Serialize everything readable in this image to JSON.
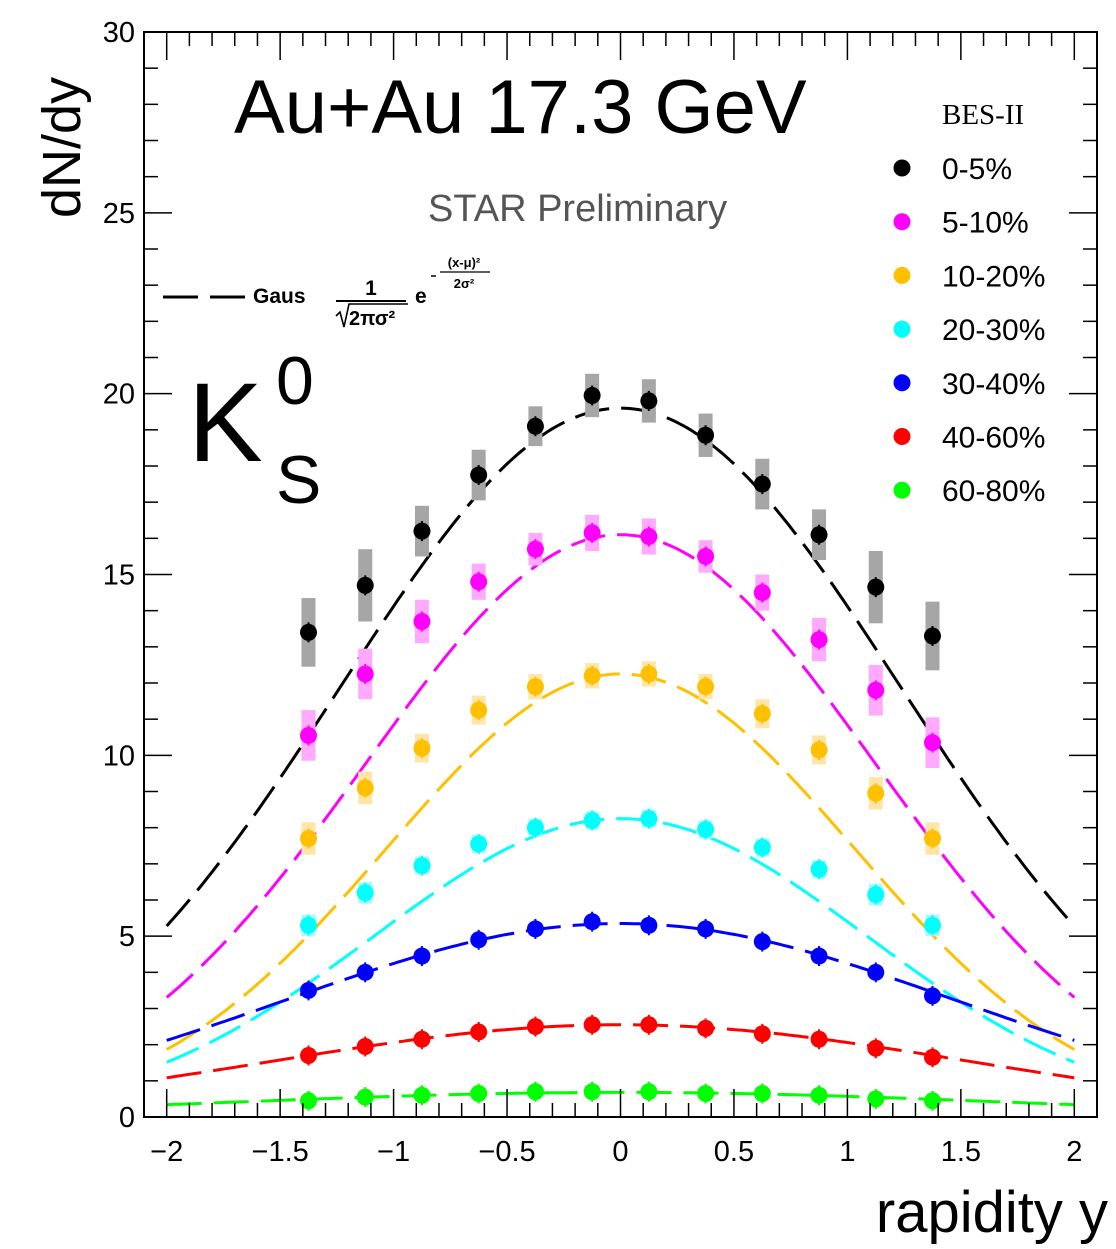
{
  "chart_data": {
    "type": "scatter",
    "title": "Au+Au 17.3 GeV",
    "subtitle": "BES-II",
    "watermark": "STAR Preliminary",
    "particle": {
      "base": "K",
      "superscript": "0",
      "subscript": "S"
    },
    "xlabel": "rapidity y",
    "ylabel": "dN/dy",
    "xlim": [
      -2.1,
      2.1
    ],
    "ylim": [
      0,
      30
    ],
    "x_ticks": [
      {
        "v": -2,
        "label": "−2"
      },
      {
        "v": -1.5,
        "label": "−1.5"
      },
      {
        "v": -1,
        "label": "−1"
      },
      {
        "v": -0.5,
        "label": "−0.5"
      },
      {
        "v": 0,
        "label": "0"
      },
      {
        "v": 0.5,
        "label": "0.5"
      },
      {
        "v": 1,
        "label": "1"
      },
      {
        "v": 1.5,
        "label": "1.5"
      },
      {
        "v": 2,
        "label": "2"
      }
    ],
    "y_ticks": [
      {
        "v": 0,
        "label": "0"
      },
      {
        "v": 5,
        "label": "5"
      },
      {
        "v": 10,
        "label": "10"
      },
      {
        "v": 15,
        "label": "15"
      },
      {
        "v": 20,
        "label": "20"
      },
      {
        "v": 25,
        "label": "25"
      },
      {
        "v": 30,
        "label": "30"
      }
    ],
    "x": [
      -1.375,
      -1.125,
      -0.875,
      -0.625,
      -0.375,
      -0.125,
      0.125,
      0.375,
      0.625,
      0.875,
      1.125,
      1.375
    ],
    "fit": {
      "function": "Gaus",
      "legend_label": "Gaus",
      "formula": {
        "prefactor_num": "1",
        "prefactor_den": "2πσ²",
        "base": "e",
        "exp_num": "(x-μ)²",
        "exp_den": "2σ²"
      },
      "x_range": [
        -2,
        2
      ]
    },
    "legend_position": "top-right",
    "series": [
      {
        "name": "0-5%",
        "color": "#000000",
        "syst_color": "#a6a6a6",
        "y": [
          13.4,
          14.7,
          16.2,
          17.75,
          19.1,
          19.95,
          19.8,
          18.85,
          17.5,
          16.1,
          14.65,
          13.3
        ],
        "syst": [
          0.95,
          1.0,
          0.7,
          0.7,
          0.55,
          0.6,
          0.6,
          0.6,
          0.7,
          0.7,
          1.0,
          0.95
        ],
        "fit": {
          "A": 19.6,
          "mu": 0.0,
          "sigma": 1.235
        }
      },
      {
        "name": "5-10%",
        "color": "#ff00ff",
        "syst_color": "#ffaaff",
        "y": [
          10.55,
          12.25,
          13.7,
          14.8,
          15.7,
          16.15,
          16.05,
          15.5,
          14.5,
          13.2,
          11.8,
          10.35
        ],
        "syst": [
          0.7,
          0.7,
          0.6,
          0.5,
          0.45,
          0.5,
          0.5,
          0.45,
          0.5,
          0.6,
          0.7,
          0.7
        ],
        "fit": {
          "A": 16.1,
          "mu": 0.0,
          "sigma": 1.124
        }
      },
      {
        "name": "10-20%",
        "color": "#ffc000",
        "syst_color": "#ffe5a8",
        "y": [
          7.7,
          9.1,
          10.2,
          11.25,
          11.9,
          12.2,
          12.25,
          11.9,
          11.15,
          10.15,
          8.95,
          7.7
        ],
        "syst": [
          0.45,
          0.45,
          0.4,
          0.4,
          0.35,
          0.35,
          0.35,
          0.35,
          0.4,
          0.4,
          0.45,
          0.45
        ],
        "fit": {
          "A": 12.25,
          "mu": 0.0,
          "sigma": 1.031
        }
      },
      {
        "name": "20-30%",
        "color": "#00ffff",
        "syst_color": "#a8fbff",
        "y": [
          5.3,
          6.2,
          6.95,
          7.55,
          8.0,
          8.2,
          8.25,
          7.95,
          7.45,
          6.85,
          6.15,
          5.3
        ],
        "syst": [
          0.3,
          0.3,
          0.25,
          0.25,
          0.25,
          0.25,
          0.25,
          0.25,
          0.25,
          0.25,
          0.3,
          0.3
        ],
        "fit": {
          "A": 8.25,
          "mu": 0.0,
          "sigma": 1.086
        }
      },
      {
        "name": "30-40%",
        "color": "#0000ff",
        "syst_color": "#a8a8ff",
        "y": [
          3.5,
          4.0,
          4.45,
          4.9,
          5.2,
          5.4,
          5.3,
          5.2,
          4.85,
          4.45,
          4.0,
          3.35
        ],
        "syst": [
          0.15,
          0.15,
          0.15,
          0.15,
          0.15,
          0.15,
          0.15,
          0.15,
          0.15,
          0.15,
          0.15,
          0.15
        ],
        "fit": {
          "A": 5.35,
          "mu": 0.0,
          "sigma": 1.47
        }
      },
      {
        "name": "40-60%",
        "color": "#ff0000",
        "syst_color": "#ffaaaa",
        "y": [
          1.7,
          1.95,
          2.15,
          2.35,
          2.5,
          2.55,
          2.55,
          2.45,
          2.3,
          2.15,
          1.9,
          1.65
        ],
        "syst": [
          0.08,
          0.08,
          0.08,
          0.08,
          0.08,
          0.08,
          0.08,
          0.08,
          0.08,
          0.08,
          0.08,
          0.08
        ],
        "fit": {
          "A": 2.55,
          "mu": 0.0,
          "sigma": 1.53
        }
      },
      {
        "name": "60-80%",
        "color": "#00ff00",
        "syst_color": "#a8ffa8",
        "y": [
          0.45,
          0.55,
          0.6,
          0.65,
          0.7,
          0.7,
          0.7,
          0.65,
          0.65,
          0.6,
          0.5,
          0.45
        ],
        "syst": [
          0.03,
          0.03,
          0.03,
          0.03,
          0.03,
          0.03,
          0.03,
          0.03,
          0.03,
          0.03,
          0.03,
          0.03
        ],
        "fit": {
          "A": 0.68,
          "mu": 0.0,
          "sigma": 1.7
        }
      }
    ]
  }
}
